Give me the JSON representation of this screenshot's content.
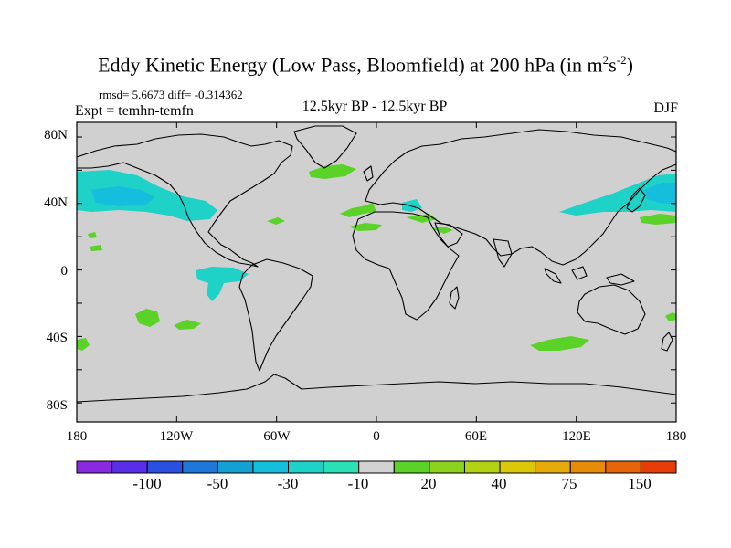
{
  "title": {
    "main": "Eddy Kinetic Energy (Low Pass, Bloomfield) at 200 hPa (in m",
    "sup1": "2",
    "mid": "s",
    "sup2": "-2",
    "end": ")"
  },
  "stats_text": "rmsd= 5.6673 diff= -0.314362",
  "expt_text": "Expt = temhn-temfn",
  "period_text": "12.5kyr BP - 12.5kyr BP",
  "season_text": "DJF",
  "x_ticks": [
    "180",
    "120W",
    "60W",
    "0",
    "60E",
    "120E",
    "180"
  ],
  "y_ticks": [
    "80N",
    "40N",
    "0",
    "40S",
    "80S"
  ],
  "colorbar": {
    "colors": [
      "#8a2ae0",
      "#5a2ee8",
      "#2a50e0",
      "#1e78dc",
      "#14a0d2",
      "#14bedc",
      "#1ed2c8",
      "#2ae0b4",
      "#d2d2d2",
      "#5ad228",
      "#8cd21e",
      "#b4d214",
      "#dcc80a",
      "#e6aa0a",
      "#e68c0a",
      "#e6640a",
      "#e63c0a"
    ],
    "labels": [
      "-100",
      "-50",
      "-30",
      "-10",
      "20",
      "40",
      "75",
      "150"
    ]
  },
  "colors": {
    "land_bg": "#d0d0d0",
    "neg_small": "#1ed2c8",
    "neg_medium": "#14bedc",
    "pos_small": "#5ad228"
  }
}
